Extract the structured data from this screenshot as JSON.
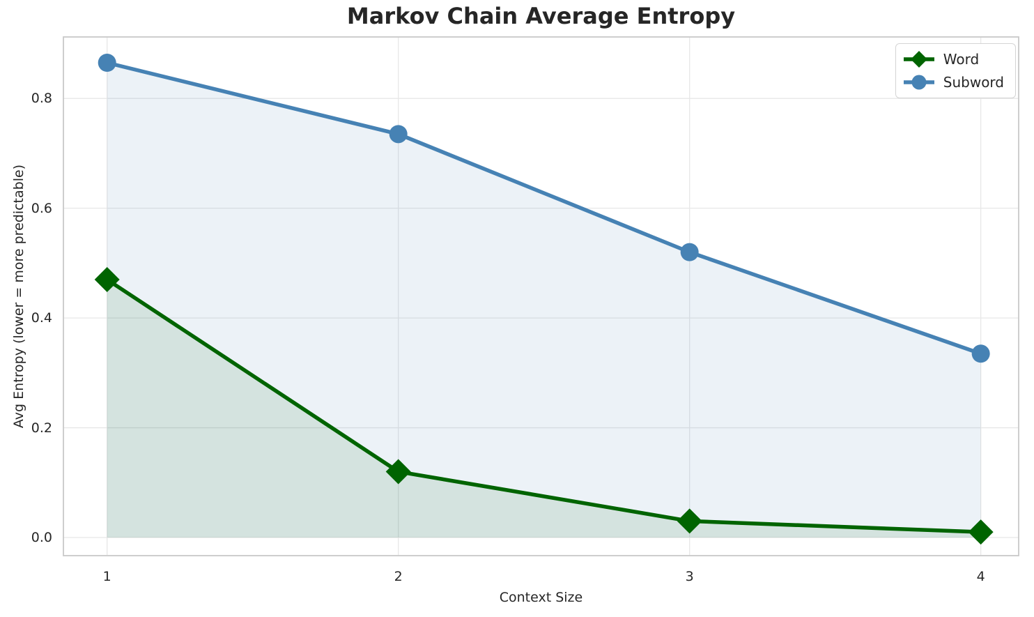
{
  "chart_data": {
    "type": "line",
    "title": "Markov Chain Average Entropy",
    "xlabel": "Context Size",
    "ylabel": "Avg Entropy (lower = more predictable)",
    "x": [
      1,
      2,
      3,
      4
    ],
    "series": [
      {
        "name": "Word",
        "values": [
          0.47,
          0.12,
          0.03,
          0.01
        ],
        "color": "#006400",
        "marker": "diamond",
        "fill_alpha": 0.1
      },
      {
        "name": "Subword",
        "values": [
          0.865,
          0.735,
          0.52,
          0.335
        ],
        "color": "#4682b4",
        "marker": "circle",
        "fill_alpha": 0.1
      }
    ],
    "xlim": [
      0.85,
      4.13
    ],
    "ylim": [
      -0.033,
      0.912
    ],
    "xticks": {
      "values": [
        1,
        2,
        3,
        4
      ],
      "labels": [
        "1",
        "2",
        "3",
        "4"
      ]
    },
    "yticks": {
      "values": [
        0.0,
        0.2,
        0.4,
        0.6,
        0.8
      ],
      "labels": [
        "0.0",
        "0.2",
        "0.4",
        "0.6",
        "0.8"
      ]
    },
    "grid": true,
    "area_fill_baseline": 0,
    "legend": {
      "position": "upper right"
    },
    "style": {
      "grid_color": "#e7e7e7",
      "spine_color": "#c9c9c9",
      "text_color": "#262626",
      "background": "#ffffff"
    }
  }
}
